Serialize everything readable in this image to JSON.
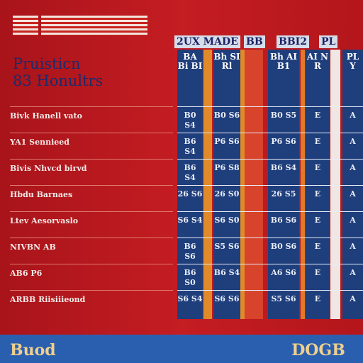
{
  "header": {
    "title": [
      "Pruisticn",
      "83 Honultrs"
    ],
    "top_labels": [
      "2UX MADE",
      "BB",
      "BBI2",
      "PL"
    ]
  },
  "table": {
    "columns": [
      "BA Bi BI",
      "Bh SI Rl",
      "Bh AI B1",
      "AI N R",
      "PL Y"
    ],
    "rows": [
      {
        "label": "Bivk Hanell vato",
        "cells": [
          "B0 S4",
          "B0 S6",
          "B0 S5",
          "E",
          "A"
        ]
      },
      {
        "label": "YA1 Sennieed",
        "cells": [
          "B6 S4",
          "P6 S6",
          "P6 S6",
          "E",
          "A"
        ]
      },
      {
        "label": "Bivis Nhvcd birvd",
        "cells": [
          "B6 S4",
          "P6 S8",
          "B6 S4",
          "E",
          "A"
        ]
      },
      {
        "label": "Hbdu Barnaes",
        "cells": [
          "26 S6",
          "26 S0",
          "26 S5",
          "E",
          "A"
        ]
      },
      {
        "label": "Ltev Aesorvaslo",
        "cells": [
          "S6 S4",
          "S6 S0",
          "B6 S6",
          "E",
          "A"
        ]
      },
      {
        "label": "NIVBN AB",
        "cells": [
          "B6 S6",
          "S5 S6",
          "B0 S6",
          "E",
          "A"
        ]
      },
      {
        "label": "AB6 P6",
        "cells": [
          "B6 S0",
          "B6 S4",
          "A6 S6",
          "E",
          "A"
        ]
      },
      {
        "label": "ARBB Riisiiieond",
        "cells": [
          "S6 S4",
          "S6 S6",
          "S5 S6",
          "E",
          "A"
        ]
      }
    ]
  },
  "footer": {
    "left": "Buod",
    "right": "DOGB"
  }
}
